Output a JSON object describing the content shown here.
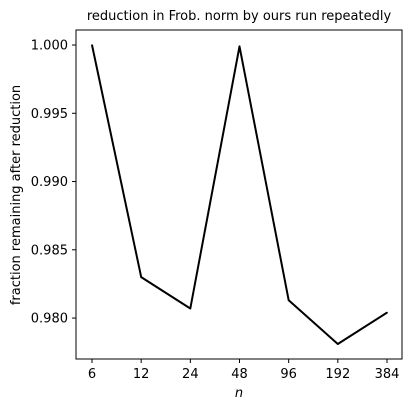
{
  "chart_data": {
    "type": "line",
    "title": "reduction in Frob. norm by ours run repeatedly",
    "xlabel": "n",
    "ylabel": "fraction remaining after reduction",
    "categories": [
      "6",
      "12",
      "24",
      "48",
      "96",
      "192",
      "384"
    ],
    "series": [
      {
        "values": [
          1.0,
          0.983,
          0.9807,
          0.9999,
          0.9813,
          0.9781,
          0.9804
        ],
        "color": "#000000"
      }
    ],
    "y_ticks": [
      "0.980",
      "0.985",
      "0.990",
      "0.995",
      "1.000"
    ],
    "ylim": [
      0.977,
      1.0011
    ],
    "grid": false
  }
}
